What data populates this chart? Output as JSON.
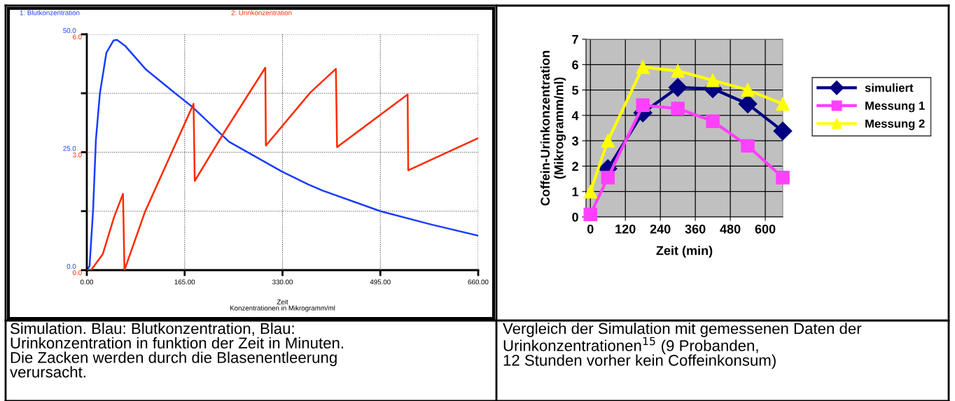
{
  "chart_data": [
    {
      "type": "line",
      "xlabel": "Zeit",
      "legend": "top",
      "grid": true,
      "xlim": [
        0,
        660
      ],
      "xticks": [
        {
          "value": 0,
          "label": "0.00"
        },
        {
          "value": 165,
          "label": "165.00"
        },
        {
          "value": 330,
          "label": "330.00"
        },
        {
          "value": 495,
          "label": "495.00"
        },
        {
          "value": 660,
          "label": "660.00"
        }
      ],
      "ylim": [
        0,
        50
      ],
      "yticks": [
        {
          "value": 0,
          "label": "0.0"
        },
        {
          "value": 12.5,
          "label": null
        },
        {
          "value": 25,
          "label": "25.0"
        },
        {
          "value": 37.5,
          "label": null
        },
        {
          "value": 50,
          "label": "50.0"
        }
      ],
      "y2lim": [
        0,
        6
      ],
      "y2ticks": [
        {
          "value": 0,
          "label": "0.0"
        },
        {
          "value": 3,
          "label": "3.0"
        },
        {
          "value": 6,
          "label": "6.0"
        }
      ],
      "series": [
        {
          "name": "1: Blutkonzentration",
          "color": "#1a3cff",
          "x": [
            0,
            4.7,
            10.6,
            15.3,
            22,
            33,
            45,
            51,
            65,
            100,
            149,
            178,
            240,
            329,
            373,
            397,
            495,
            580,
            660
          ],
          "values": [
            0,
            0.9,
            12.8,
            27.6,
            37.4,
            46.1,
            48.7,
            48.8,
            47.5,
            42.5,
            37.5,
            34.6,
            27.2,
            20.9,
            18.2,
            16.9,
            12.5,
            9.7,
            7.3
          ]
        },
        {
          "name": "2: Urinkonzentration",
          "color": "#ff2a00",
          "axis": "y2",
          "x": [
            0,
            7,
            10.6,
            27,
            46,
            61,
            63.5,
            98,
            180,
            182,
            231,
            301,
            302,
            377,
            420,
            422,
            541,
            542,
            660
          ],
          "values": [
            0,
            0,
            0.07,
            0.41,
            1.35,
            1.94,
            0,
            1.48,
            4.23,
            2.27,
            3.49,
            5.15,
            3.17,
            4.52,
            5.12,
            3.13,
            4.47,
            2.54,
            3.36
          ]
        }
      ],
      "annotations": [
        "Konzentrationen in Mikrogramm/ml",
        "Simulation. Blau: Blutkonzentration, Blau:\nUrinkonzentration in funktion der Zeit in Minuten.\nDie Zacken werden durch die Blasenentleerung\nverursacht."
      ]
    },
    {
      "type": "line",
      "xlabel": "Zeit (min)",
      "ylabel": "Coffein-Urinkonzentration\n(Mikrogramm/ml)",
      "legend": "right",
      "grid": true,
      "x": [
        0,
        60,
        180,
        300,
        420,
        540,
        660
      ],
      "xlim": [
        -15,
        660
      ],
      "xticks": [
        0,
        120,
        240,
        360,
        480,
        600
      ],
      "ylim": [
        0,
        7
      ],
      "yticks": [
        0,
        1,
        2,
        3,
        4,
        5,
        6,
        7
      ],
      "series": [
        {
          "name": "simuliert",
          "color": "#000080",
          "marker": "diamond",
          "values": [
            null,
            1.9,
            4.1,
            5.1,
            5.05,
            4.45,
            3.38
          ]
        },
        {
          "name": "Messung 1",
          "color": "#ff40ff",
          "marker": "square",
          "values": [
            0.1,
            1.55,
            4.4,
            4.27,
            3.77,
            2.8,
            1.55
          ]
        },
        {
          "name": "Messung 2",
          "color": "#ffff00",
          "marker": "triangle",
          "values": [
            1.0,
            3.0,
            5.9,
            5.75,
            5.38,
            5.0,
            4.45
          ]
        }
      ],
      "annotations": [
        "Vergleich der Simulation mit gemessenen Daten der\nUrinkonzentrationen$^{15}$ (9 Probanden,\n12 Stunden vorher kein Coffeinkonsum)"
      ]
    }
  ]
}
